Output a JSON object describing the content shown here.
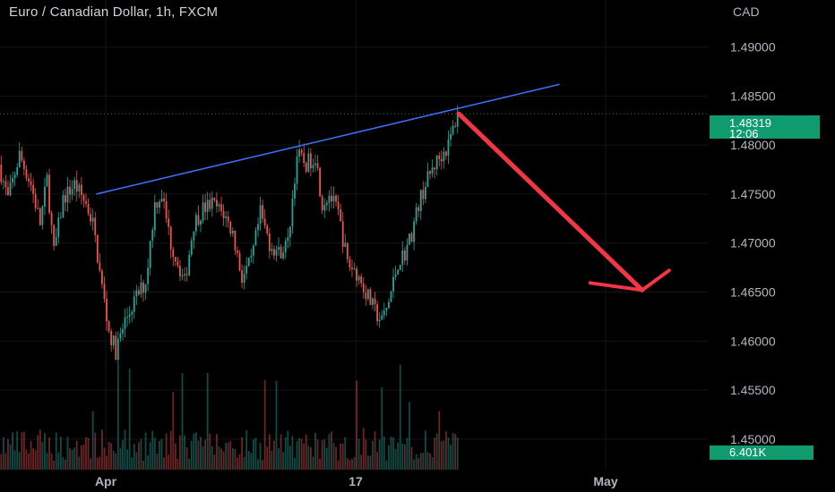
{
  "header": {
    "symbol_title": "Euro / Canadian Dollar, 1h, FXCM",
    "currency": "CAD"
  },
  "price_badge": {
    "price": "1.48319",
    "countdown": "12:06"
  },
  "volume_badge": {
    "value": "6.401K"
  },
  "colors": {
    "background": "#000000",
    "up": "#26a69a",
    "down": "#ef5350",
    "trendline": "#3b6ef5",
    "arrow": "#f23645",
    "badge": "#0f9b6e",
    "grid": "#141414"
  },
  "chart_data": {
    "type": "candlestick",
    "title": "Euro / Canadian Dollar, 1h, FXCM",
    "y_axis": {
      "ticks": [
        "1.49000",
        "1.48500",
        "1.48000",
        "1.47500",
        "1.47000",
        "1.46500",
        "1.46000",
        "1.45500",
        "1.45000"
      ],
      "range": [
        1.4446,
        1.4948
      ]
    },
    "x_axis": {
      "ticks": [
        "Apr",
        "17",
        "May"
      ]
    },
    "last_price": 1.48319,
    "price_path": [
      {
        "x": 0.0,
        "y": 1.478
      },
      {
        "x": 0.02,
        "y": 1.4745
      },
      {
        "x": 0.045,
        "y": 1.479
      },
      {
        "x": 0.07,
        "y": 1.476
      },
      {
        "x": 0.09,
        "y": 1.472
      },
      {
        "x": 0.105,
        "y": 1.4765
      },
      {
        "x": 0.12,
        "y": 1.469
      },
      {
        "x": 0.14,
        "y": 1.4745
      },
      {
        "x": 0.165,
        "y": 1.476
      },
      {
        "x": 0.19,
        "y": 1.474
      },
      {
        "x": 0.205,
        "y": 1.472
      },
      {
        "x": 0.22,
        "y": 1.467
      },
      {
        "x": 0.24,
        "y": 1.461
      },
      {
        "x": 0.255,
        "y": 1.459
      },
      {
        "x": 0.275,
        "y": 1.462
      },
      {
        "x": 0.3,
        "y": 1.4645
      },
      {
        "x": 0.32,
        "y": 1.466
      },
      {
        "x": 0.34,
        "y": 1.474
      },
      {
        "x": 0.355,
        "y": 1.475
      },
      {
        "x": 0.375,
        "y": 1.47
      },
      {
        "x": 0.39,
        "y": 1.468
      },
      {
        "x": 0.405,
        "y": 1.466
      },
      {
        "x": 0.425,
        "y": 1.472
      },
      {
        "x": 0.445,
        "y": 1.4735
      },
      {
        "x": 0.465,
        "y": 1.474
      },
      {
        "x": 0.49,
        "y": 1.473
      },
      {
        "x": 0.51,
        "y": 1.471
      },
      {
        "x": 0.53,
        "y": 1.4665
      },
      {
        "x": 0.55,
        "y": 1.468
      },
      {
        "x": 0.57,
        "y": 1.473
      },
      {
        "x": 0.59,
        "y": 1.47
      },
      {
        "x": 0.61,
        "y": 1.469
      },
      {
        "x": 0.63,
        "y": 1.47
      },
      {
        "x": 0.65,
        "y": 1.479
      },
      {
        "x": 0.67,
        "y": 1.478
      },
      {
        "x": 0.69,
        "y": 1.479
      },
      {
        "x": 0.705,
        "y": 1.474
      },
      {
        "x": 0.72,
        "y": 1.475
      },
      {
        "x": 0.74,
        "y": 1.473
      },
      {
        "x": 0.76,
        "y": 1.468
      },
      {
        "x": 0.78,
        "y": 1.467
      },
      {
        "x": 0.8,
        "y": 1.465
      },
      {
        "x": 0.82,
        "y": 1.463
      },
      {
        "x": 0.835,
        "y": 1.462
      },
      {
        "x": 0.85,
        "y": 1.464
      },
      {
        "x": 0.87,
        "y": 1.468
      },
      {
        "x": 0.885,
        "y": 1.469
      },
      {
        "x": 0.9,
        "y": 1.471
      },
      {
        "x": 0.915,
        "y": 1.474
      },
      {
        "x": 0.93,
        "y": 1.476
      },
      {
        "x": 0.95,
        "y": 1.478
      },
      {
        "x": 0.965,
        "y": 1.479
      },
      {
        "x": 0.98,
        "y": 1.48
      },
      {
        "x": 1.0,
        "y": 1.4832
      }
    ],
    "annotations": [
      {
        "type": "trendline",
        "from": {
          "x": 0.21,
          "y": 1.475
        },
        "to": {
          "x": 1.22,
          "y": 1.4862
        }
      },
      {
        "type": "arrow",
        "from": {
          "x": 1.0,
          "y": 1.4832
        },
        "to": {
          "x": 1.4,
          "y": 1.4652
        }
      }
    ]
  }
}
